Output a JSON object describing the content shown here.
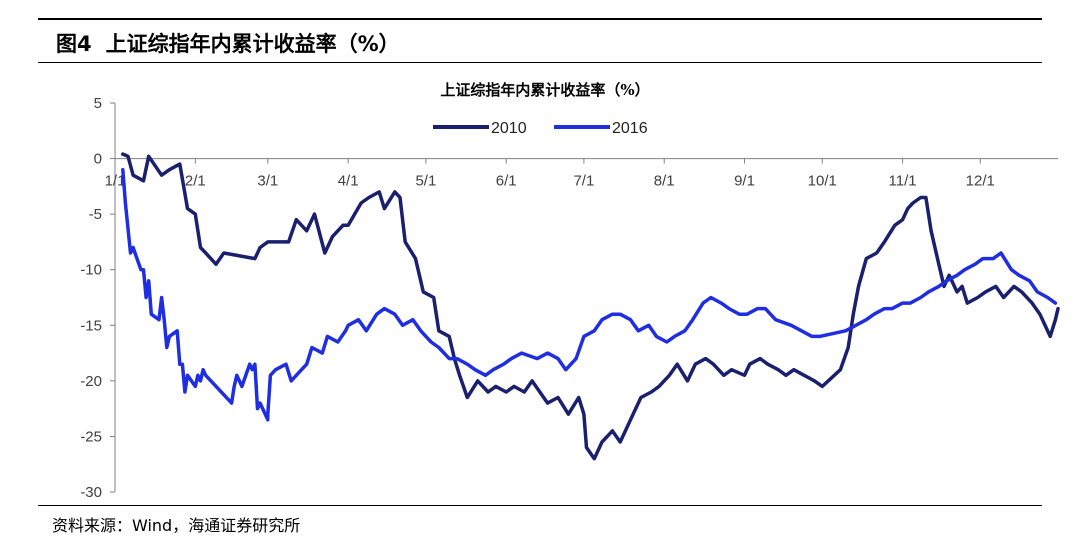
{
  "figure": {
    "label": "图4",
    "title": "上证综指年内累计收益率（%）",
    "source": "资料来源：Wind，海通证券研究所"
  },
  "colors": {
    "series_2010": "#1a1f6e",
    "series_2016": "#1f2ee0",
    "axis": "#808080"
  },
  "chart_data": {
    "type": "line",
    "title": "上证综指年内累计收益率（%）",
    "xlabel": "",
    "ylabel": "",
    "x_ticks": [
      "1/1",
      "2/1",
      "3/1",
      "4/1",
      "5/1",
      "6/1",
      "7/1",
      "8/1",
      "9/1",
      "10/1",
      "11/1",
      "12/1"
    ],
    "x_domain": [
      "1/1",
      "12/31"
    ],
    "ylim": [
      -30,
      5
    ],
    "y_ticks": [
      5,
      0,
      -5,
      -10,
      -15,
      -20,
      -25,
      -30
    ],
    "grid": false,
    "legend_position": "top-center",
    "series": [
      {
        "name": "2010",
        "color": "#1a1f6e",
        "points": [
          [
            "1/4",
            0.4
          ],
          [
            "1/6",
            0.2
          ],
          [
            "1/8",
            -1.5
          ],
          [
            "1/12",
            -2.0
          ],
          [
            "1/14",
            0.2
          ],
          [
            "1/19",
            -1.5
          ],
          [
            "1/22",
            -1.0
          ],
          [
            "1/26",
            -0.5
          ],
          [
            "1/29",
            -4.5
          ],
          [
            "2/1",
            -5.0
          ],
          [
            "2/3",
            -8.0
          ],
          [
            "2/5",
            -8.5
          ],
          [
            "2/9",
            -9.5
          ],
          [
            "2/12",
            -8.5
          ],
          [
            "2/24",
            -9.0
          ],
          [
            "2/26",
            -8.0
          ],
          [
            "3/1",
            -7.5
          ],
          [
            "3/5",
            -7.5
          ],
          [
            "3/9",
            -7.5
          ],
          [
            "3/12",
            -5.5
          ],
          [
            "3/16",
            -6.5
          ],
          [
            "3/19",
            -5.0
          ],
          [
            "3/23",
            -8.5
          ],
          [
            "3/26",
            -7.0
          ],
          [
            "3/30",
            -6.0
          ],
          [
            "4/1",
            -6.0
          ],
          [
            "4/6",
            -4.0
          ],
          [
            "4/9",
            -3.5
          ],
          [
            "4/13",
            -3.0
          ],
          [
            "4/15",
            -4.5
          ],
          [
            "4/19",
            -3.0
          ],
          [
            "4/21",
            -3.5
          ],
          [
            "4/23",
            -7.5
          ],
          [
            "4/27",
            -9.0
          ],
          [
            "4/30",
            -12.0
          ],
          [
            "5/4",
            -12.5
          ],
          [
            "5/6",
            -15.5
          ],
          [
            "5/10",
            -16.0
          ],
          [
            "5/12",
            -18.0
          ],
          [
            "5/14",
            -19.5
          ],
          [
            "5/17",
            -21.5
          ],
          [
            "5/21",
            -20.0
          ],
          [
            "5/25",
            -21.0
          ],
          [
            "5/28",
            -20.5
          ],
          [
            "6/1",
            -21.0
          ],
          [
            "6/4",
            -20.5
          ],
          [
            "6/8",
            -21.0
          ],
          [
            "6/11",
            -20.0
          ],
          [
            "6/17",
            -22.0
          ],
          [
            "6/21",
            -21.5
          ],
          [
            "6/25",
            -23.0
          ],
          [
            "6/29",
            -21.5
          ],
          [
            "7/1",
            -23.0
          ],
          [
            "7/2",
            -26.0
          ],
          [
            "7/5",
            -27.0
          ],
          [
            "7/8",
            -25.5
          ],
          [
            "7/12",
            -24.5
          ],
          [
            "7/15",
            -25.5
          ],
          [
            "7/20",
            -23.0
          ],
          [
            "7/23",
            -21.5
          ],
          [
            "7/27",
            -21.0
          ],
          [
            "7/30",
            -20.5
          ],
          [
            "8/3",
            -19.5
          ],
          [
            "8/6",
            -18.5
          ],
          [
            "8/10",
            -20.0
          ],
          [
            "8/13",
            -18.5
          ],
          [
            "8/17",
            -18.0
          ],
          [
            "8/20",
            -18.5
          ],
          [
            "8/24",
            -19.5
          ],
          [
            "8/27",
            -19.0
          ],
          [
            "9/1",
            -19.5
          ],
          [
            "9/3",
            -18.5
          ],
          [
            "9/7",
            -18.0
          ],
          [
            "9/10",
            -18.5
          ],
          [
            "9/14",
            -19.0
          ],
          [
            "9/17",
            -19.5
          ],
          [
            "9/20",
            -19.0
          ],
          [
            "9/24",
            -19.5
          ],
          [
            "9/28",
            -20.0
          ],
          [
            "10/1",
            -20.5
          ],
          [
            "10/8",
            -19.0
          ],
          [
            "10/11",
            -17.0
          ],
          [
            "10/13",
            -14.0
          ],
          [
            "10/15",
            -11.5
          ],
          [
            "10/18",
            -9.0
          ],
          [
            "10/22",
            -8.5
          ],
          [
            "10/25",
            -7.5
          ],
          [
            "10/29",
            -6.0
          ],
          [
            "11/1",
            -5.5
          ],
          [
            "11/3",
            -4.5
          ],
          [
            "11/5",
            -4.0
          ],
          [
            "11/8",
            -3.5
          ],
          [
            "11/10",
            -3.5
          ],
          [
            "11/12",
            -6.5
          ],
          [
            "11/15",
            -9.5
          ],
          [
            "11/17",
            -11.5
          ],
          [
            "11/19",
            -10.5
          ],
          [
            "11/22",
            -12.0
          ],
          [
            "11/24",
            -11.5
          ],
          [
            "11/26",
            -13.0
          ],
          [
            "11/30",
            -12.5
          ],
          [
            "12/3",
            -12.0
          ],
          [
            "12/7",
            -11.5
          ],
          [
            "12/10",
            -12.5
          ],
          [
            "12/14",
            -11.5
          ],
          [
            "12/17",
            -12.0
          ],
          [
            "12/21",
            -13.0
          ],
          [
            "12/24",
            -14.0
          ],
          [
            "12/28",
            -16.0
          ],
          [
            "12/30",
            -14.5
          ],
          [
            "12/31",
            -13.5
          ]
        ]
      },
      {
        "name": "2016",
        "color": "#1f2ee0",
        "points": [
          [
            "1/4",
            -1.0
          ],
          [
            "1/5",
            -4.0
          ],
          [
            "1/7",
            -8.5
          ],
          [
            "1/8",
            -8.0
          ],
          [
            "1/11",
            -10.0
          ],
          [
            "1/12",
            -10.0
          ],
          [
            "1/13",
            -12.5
          ],
          [
            "1/14",
            -11.0
          ],
          [
            "1/15",
            -14.0
          ],
          [
            "1/18",
            -14.5
          ],
          [
            "1/19",
            -12.5
          ],
          [
            "1/20",
            -14.5
          ],
          [
            "1/21",
            -17.0
          ],
          [
            "1/22",
            -16.0
          ],
          [
            "1/25",
            -15.5
          ],
          [
            "1/26",
            -18.5
          ],
          [
            "1/27",
            -18.5
          ],
          [
            "1/28",
            -21.0
          ],
          [
            "1/29",
            -19.5
          ],
          [
            "2/1",
            -20.5
          ],
          [
            "2/2",
            -19.5
          ],
          [
            "2/3",
            -20.0
          ],
          [
            "2/4",
            -19.0
          ],
          [
            "2/5",
            -19.5
          ],
          [
            "2/15",
            -22.0
          ],
          [
            "2/16",
            -20.5
          ],
          [
            "2/17",
            -19.5
          ],
          [
            "2/18",
            -20.0
          ],
          [
            "2/19",
            -20.5
          ],
          [
            "2/22",
            -18.5
          ],
          [
            "2/23",
            -19.0
          ],
          [
            "2/24",
            -18.5
          ],
          [
            "2/25",
            -22.5
          ],
          [
            "2/26",
            -22.0
          ],
          [
            "2/29",
            -23.5
          ],
          [
            "3/1",
            -23.0
          ],
          [
            "3/2",
            -19.5
          ],
          [
            "3/4",
            -19.0
          ],
          [
            "3/8",
            -18.5
          ],
          [
            "3/10",
            -20.0
          ],
          [
            "3/14",
            -19.0
          ],
          [
            "3/16",
            -18.5
          ],
          [
            "3/18",
            -17.0
          ],
          [
            "3/22",
            -17.5
          ],
          [
            "3/24",
            -16.0
          ],
          [
            "3/28",
            -16.5
          ],
          [
            "3/31",
            -15.5
          ],
          [
            "4/1",
            -15.0
          ],
          [
            "4/5",
            -14.5
          ],
          [
            "4/8",
            -15.5
          ],
          [
            "4/12",
            -14.0
          ],
          [
            "4/15",
            -13.5
          ],
          [
            "4/19",
            -14.0
          ],
          [
            "4/22",
            -15.0
          ],
          [
            "4/26",
            -14.5
          ],
          [
            "4/29",
            -15.5
          ],
          [
            "5/3",
            -16.5
          ],
          [
            "5/6",
            -17.0
          ],
          [
            "5/10",
            -18.0
          ],
          [
            "5/13",
            -18.0
          ],
          [
            "5/17",
            -18.5
          ],
          [
            "5/20",
            -19.0
          ],
          [
            "5/24",
            -19.5
          ],
          [
            "5/27",
            -19.0
          ],
          [
            "5/31",
            -18.5
          ],
          [
            "6/3",
            -18.0
          ],
          [
            "6/7",
            -17.5
          ],
          [
            "6/13",
            -18.0
          ],
          [
            "6/17",
            -17.5
          ],
          [
            "6/21",
            -18.0
          ],
          [
            "6/24",
            -19.0
          ],
          [
            "6/28",
            -18.0
          ],
          [
            "7/1",
            -16.0
          ],
          [
            "7/5",
            -15.5
          ],
          [
            "7/8",
            -14.5
          ],
          [
            "7/12",
            -14.0
          ],
          [
            "7/15",
            -14.0
          ],
          [
            "7/19",
            -14.5
          ],
          [
            "7/22",
            -15.5
          ],
          [
            "7/26",
            -15.0
          ],
          [
            "7/29",
            -16.0
          ],
          [
            "8/2",
            -16.5
          ],
          [
            "8/5",
            -16.0
          ],
          [
            "8/9",
            -15.5
          ],
          [
            "8/12",
            -14.5
          ],
          [
            "8/16",
            -13.0
          ],
          [
            "8/19",
            -12.5
          ],
          [
            "8/23",
            -13.0
          ],
          [
            "8/26",
            -13.5
          ],
          [
            "8/30",
            -14.0
          ],
          [
            "9/2",
            -14.0
          ],
          [
            "9/6",
            -13.5
          ],
          [
            "9/9",
            -13.5
          ],
          [
            "9/13",
            -14.5
          ],
          [
            "9/19",
            -15.0
          ],
          [
            "9/23",
            -15.5
          ],
          [
            "9/27",
            -16.0
          ],
          [
            "9/30",
            -16.0
          ],
          [
            "10/10",
            -15.5
          ],
          [
            "10/14",
            -15.0
          ],
          [
            "10/18",
            -14.5
          ],
          [
            "10/21",
            -14.0
          ],
          [
            "10/25",
            -13.5
          ],
          [
            "10/28",
            -13.5
          ],
          [
            "11/1",
            -13.0
          ],
          [
            "11/4",
            -13.0
          ],
          [
            "11/8",
            -12.5
          ],
          [
            "11/11",
            -12.0
          ],
          [
            "11/15",
            -11.5
          ],
          [
            "11/18",
            -11.0
          ],
          [
            "11/22",
            -10.5
          ],
          [
            "11/25",
            -10.0
          ],
          [
            "11/29",
            -9.5
          ],
          [
            "12/2",
            -9.0
          ],
          [
            "12/6",
            -9.0
          ],
          [
            "12/9",
            -8.5
          ],
          [
            "12/13",
            -10.0
          ],
          [
            "12/16",
            -10.5
          ],
          [
            "12/20",
            -11.0
          ],
          [
            "12/23",
            -12.0
          ],
          [
            "12/27",
            -12.5
          ],
          [
            "12/30",
            -13.0
          ]
        ]
      }
    ]
  }
}
